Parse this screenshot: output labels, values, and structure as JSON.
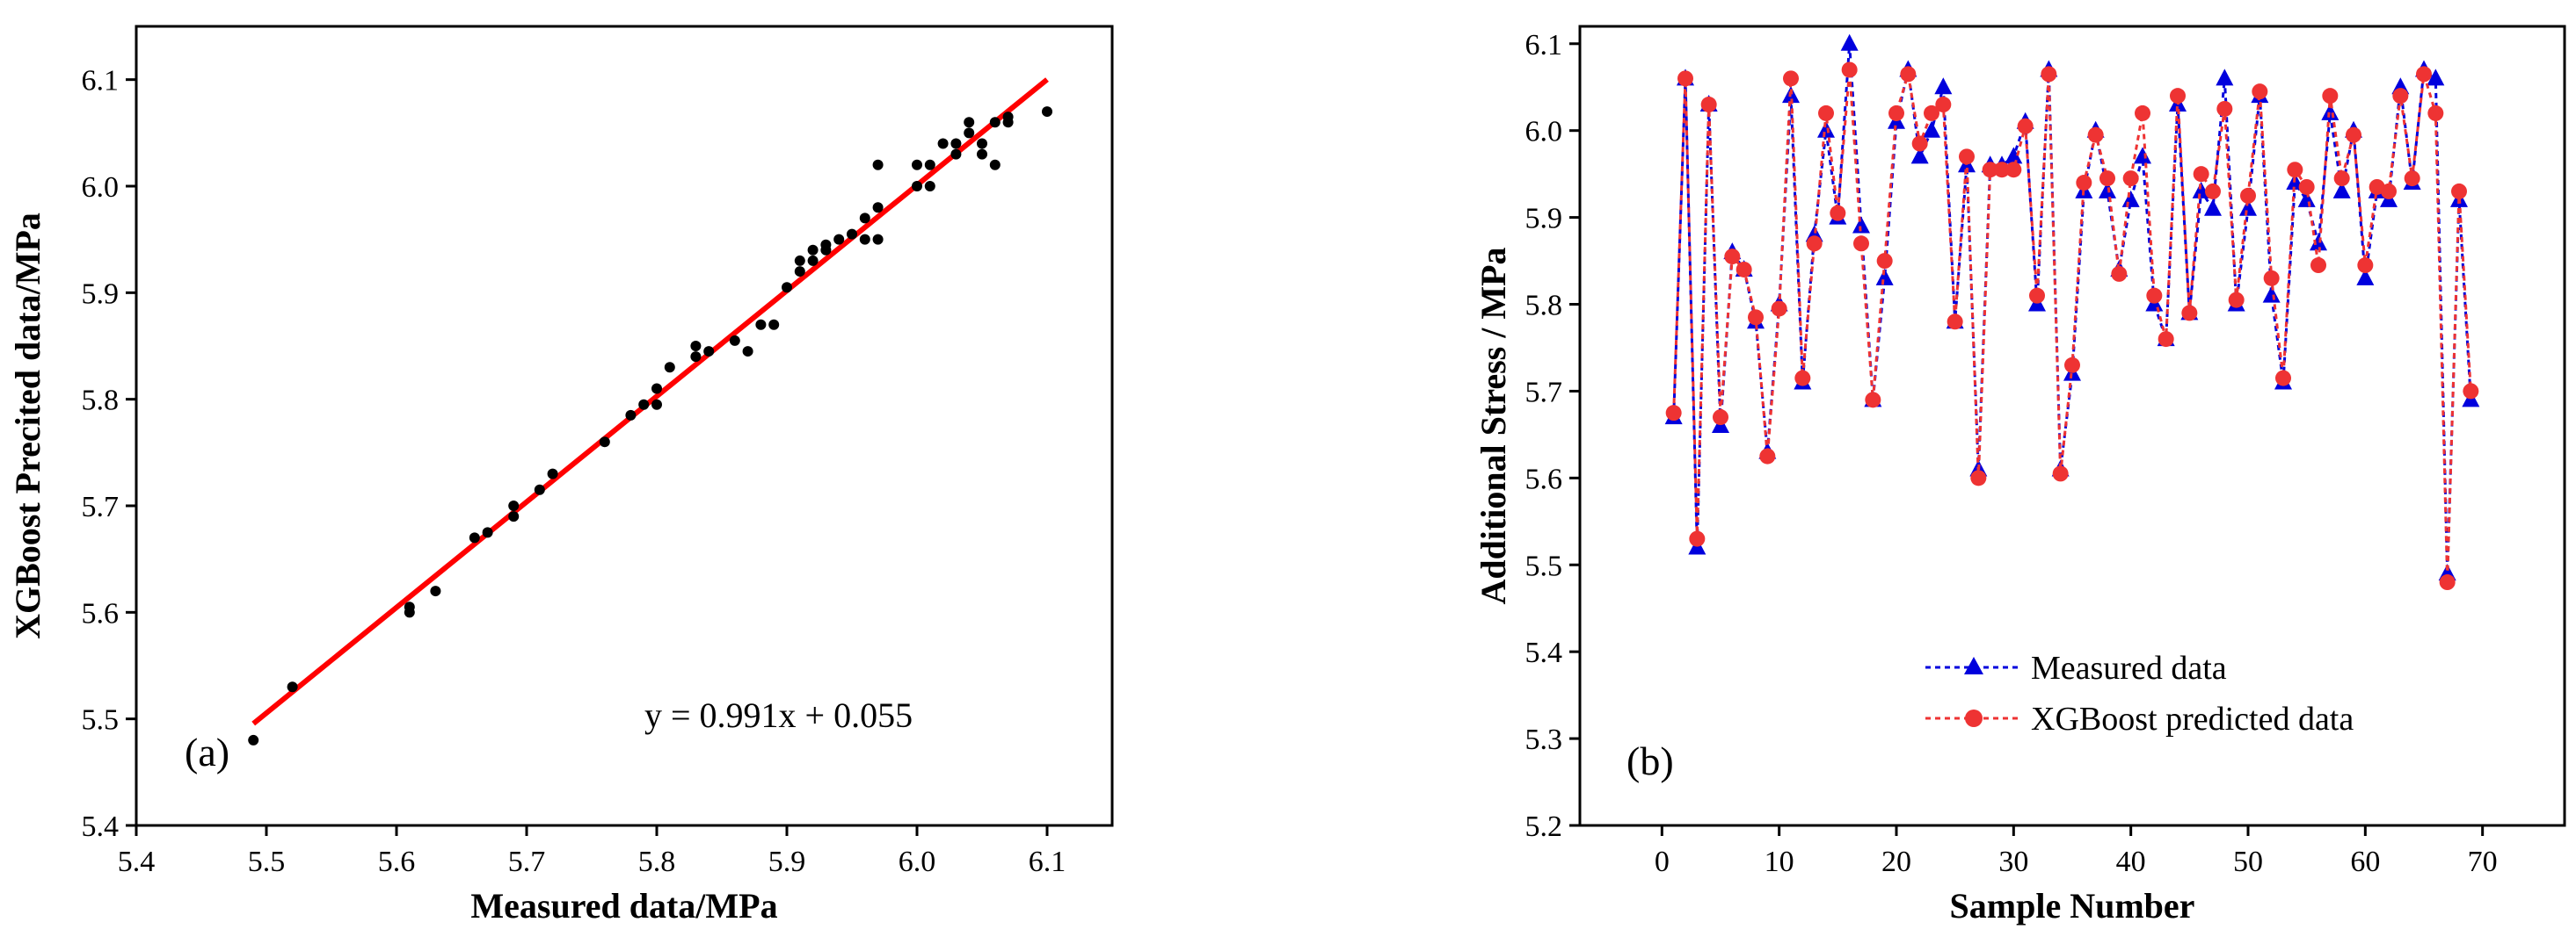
{
  "chart_data": [
    {
      "id": "a",
      "type": "scatter",
      "panel_label": "(a)",
      "xlabel": "Measured data/MPa",
      "ylabel": "XGBoost Precited data/MPa",
      "xlim": [
        5.4,
        6.15
      ],
      "ylim": [
        5.4,
        6.15
      ],
      "xticks": [
        "5.4",
        "5.5",
        "5.6",
        "5.7",
        "5.8",
        "5.9",
        "6.0",
        "6.1"
      ],
      "yticks": [
        "5.4",
        "5.5",
        "5.6",
        "5.7",
        "5.8",
        "5.9",
        "6.0",
        "6.1"
      ],
      "fit_equation": "y = 0.991x + 0.055",
      "fit_line": {
        "slope": 0.991,
        "intercept": 0.055,
        "x_range": [
          5.49,
          6.1
        ],
        "color": "#ff0000"
      },
      "points_color": "#000000",
      "points": [
        [
          5.49,
          5.48
        ],
        [
          5.52,
          5.53
        ],
        [
          5.61,
          5.6
        ],
        [
          5.61,
          5.605
        ],
        [
          5.63,
          5.62
        ],
        [
          5.66,
          5.67
        ],
        [
          5.67,
          5.675
        ],
        [
          5.69,
          5.69
        ],
        [
          5.69,
          5.7
        ],
        [
          5.71,
          5.715
        ],
        [
          5.72,
          5.73
        ],
        [
          5.76,
          5.76
        ],
        [
          5.78,
          5.785
        ],
        [
          5.79,
          5.795
        ],
        [
          5.8,
          5.795
        ],
        [
          5.8,
          5.81
        ],
        [
          5.81,
          5.83
        ],
        [
          5.83,
          5.84
        ],
        [
          5.83,
          5.85
        ],
        [
          5.84,
          5.845
        ],
        [
          5.86,
          5.855
        ],
        [
          5.87,
          5.845
        ],
        [
          5.88,
          5.87
        ],
        [
          5.89,
          5.87
        ],
        [
          5.9,
          5.905
        ],
        [
          5.91,
          5.92
        ],
        [
          5.91,
          5.93
        ],
        [
          5.92,
          5.93
        ],
        [
          5.92,
          5.94
        ],
        [
          5.93,
          5.945
        ],
        [
          5.93,
          5.94
        ],
        [
          5.94,
          5.95
        ],
        [
          5.95,
          5.955
        ],
        [
          5.96,
          5.95
        ],
        [
          5.96,
          5.97
        ],
        [
          5.97,
          5.95
        ],
        [
          5.97,
          5.98
        ],
        [
          5.97,
          6.02
        ],
        [
          6.0,
          6.02
        ],
        [
          6.0,
          6.0
        ],
        [
          6.01,
          6.0
        ],
        [
          6.01,
          6.02
        ],
        [
          6.02,
          6.04
        ],
        [
          6.03,
          6.03
        ],
        [
          6.03,
          6.04
        ],
        [
          6.04,
          6.05
        ],
        [
          6.04,
          6.06
        ],
        [
          6.05,
          6.03
        ],
        [
          6.05,
          6.04
        ],
        [
          6.06,
          6.02
        ],
        [
          6.06,
          6.06
        ],
        [
          6.07,
          6.06
        ],
        [
          6.07,
          6.065
        ],
        [
          6.1,
          6.07
        ]
      ]
    },
    {
      "id": "b",
      "type": "line",
      "panel_label": "(b)",
      "xlabel": "Sample Number",
      "ylabel": "Additional Stress / MPa",
      "xlim": [
        -7,
        77
      ],
      "ylim": [
        5.2,
        6.12
      ],
      "xticks": [
        "0",
        "10",
        "20",
        "30",
        "40",
        "50",
        "60",
        "70"
      ],
      "yticks": [
        "5.2",
        "5.3",
        "5.4",
        "5.5",
        "5.6",
        "5.7",
        "5.8",
        "5.9",
        "6.0",
        "6.1"
      ],
      "legend": [
        "Measured data",
        "XGBoost predicted data"
      ],
      "x": [
        1,
        2,
        3,
        4,
        5,
        6,
        7,
        8,
        9,
        10,
        11,
        12,
        13,
        14,
        15,
        16,
        17,
        18,
        19,
        20,
        21,
        22,
        23,
        24,
        25,
        26,
        27,
        28,
        29,
        30,
        31,
        32,
        33,
        34,
        35,
        36,
        37,
        38,
        39,
        40,
        41,
        42,
        43,
        44,
        45,
        46,
        47,
        48,
        49,
        50,
        51,
        52,
        53,
        54,
        55,
        56,
        57,
        58,
        59,
        60,
        61,
        62,
        63,
        64,
        65,
        66,
        67,
        68,
        69
      ],
      "series": [
        {
          "name": "Measured data",
          "color": "#0000dd",
          "marker": "triangle",
          "values": [
            5.67,
            6.06,
            5.52,
            6.03,
            5.66,
            5.86,
            5.84,
            5.78,
            5.63,
            5.8,
            6.04,
            5.71,
            5.88,
            6.0,
            5.9,
            6.1,
            5.89,
            5.69,
            5.83,
            6.01,
            6.07,
            5.97,
            6.0,
            6.05,
            5.78,
            5.96,
            5.61,
            5.96,
            5.96,
            5.97,
            6.01,
            5.8,
            6.07,
            5.61,
            5.72,
            5.93,
            6.0,
            5.93,
            5.84,
            5.92,
            5.97,
            5.8,
            5.76,
            6.03,
            5.79,
            5.93,
            5.91,
            6.06,
            5.8,
            5.91,
            6.04,
            5.81,
            5.71,
            5.94,
            5.92,
            5.87,
            6.02,
            5.93,
            6.0,
            5.83,
            5.93,
            5.92,
            6.05,
            5.94,
            6.07,
            6.06,
            5.49,
            5.92,
            5.69
          ]
        },
        {
          "name": "XGBoost predicted data",
          "color": "#ee3333",
          "marker": "circle",
          "values": [
            5.675,
            6.06,
            5.53,
            6.03,
            5.67,
            5.855,
            5.84,
            5.785,
            5.625,
            5.795,
            6.06,
            5.715,
            5.87,
            6.02,
            5.905,
            6.07,
            5.87,
            5.69,
            5.85,
            6.02,
            6.065,
            5.985,
            6.02,
            6.03,
            5.78,
            5.97,
            5.6,
            5.955,
            5.955,
            5.955,
            6.005,
            5.81,
            6.065,
            5.605,
            5.73,
            5.94,
            5.995,
            5.945,
            5.835,
            5.945,
            6.02,
            5.81,
            5.76,
            6.04,
            5.79,
            5.95,
            5.93,
            6.025,
            5.805,
            5.925,
            6.045,
            5.83,
            5.715,
            5.955,
            5.935,
            5.845,
            6.04,
            5.945,
            5.995,
            5.845,
            5.935,
            5.93,
            6.04,
            5.945,
            6.065,
            6.02,
            5.48,
            5.93,
            5.7
          ]
        }
      ]
    }
  ]
}
